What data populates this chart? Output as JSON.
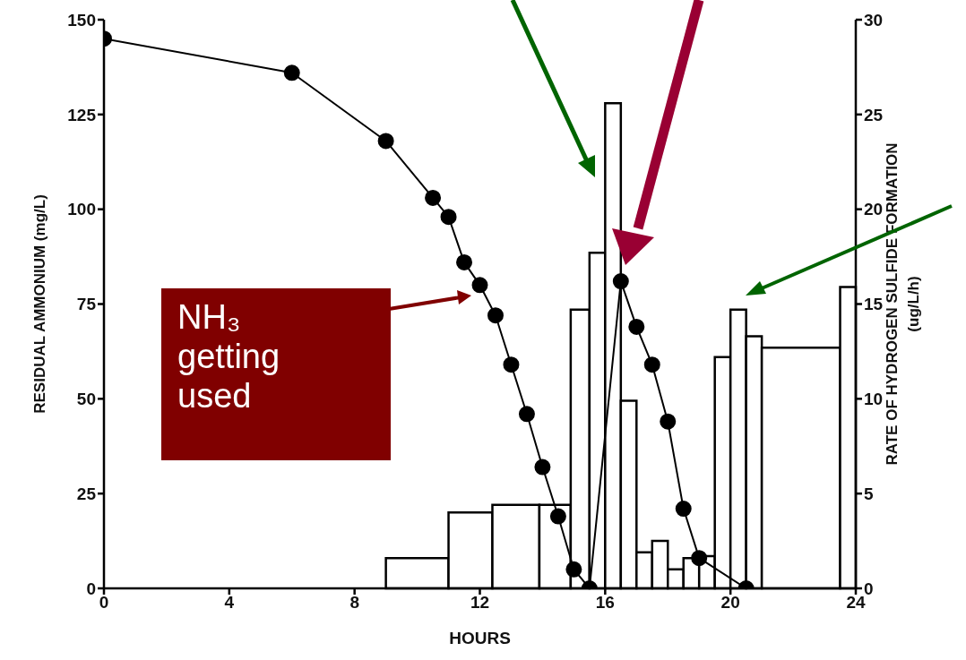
{
  "chart_data": {
    "type": "line",
    "xlabel": "HOURS",
    "ylabel": "RESIDUAL AMMONIUM (mg/L)",
    "y2label": "RATE OF HYDROGEN SULFIDE FORMATION (ug/L/h)",
    "xlim": [
      0,
      24
    ],
    "xticks": [
      0,
      4,
      8,
      12,
      16,
      20,
      24
    ],
    "ylim": [
      0,
      150
    ],
    "yticks": [
      0,
      25,
      50,
      75,
      100,
      125,
      150
    ],
    "y2lim": [
      0,
      30
    ],
    "y2ticks": [
      0,
      5,
      10,
      15,
      20,
      25,
      30
    ],
    "marker": "circle",
    "series": [
      {
        "type": "histogram",
        "axis": "y2",
        "color": "#ffffff",
        "bins": [
          9,
          11,
          12.4,
          13.9,
          14.9,
          15.5,
          16,
          16.5,
          17,
          17.5,
          18,
          18.5,
          19,
          19.5,
          20,
          20.5,
          21,
          23.5,
          24
        ],
        "values": [
          1.6,
          4,
          4.4,
          4.4,
          14.7,
          17.7,
          25.6,
          9.9,
          1.9,
          2.5,
          1,
          1.6,
          1.7,
          12.2,
          14.7,
          13.3,
          12.7,
          15.9
        ]
      },
      {
        "color": "#000000",
        "x": [
          0,
          6,
          9,
          10.5,
          11,
          11.5,
          12,
          12.5,
          13,
          13.5,
          14,
          14.5,
          15,
          15.5,
          16.5,
          17,
          17.5,
          18,
          18.5,
          19,
          20.5
        ],
        "values": [
          145,
          136,
          118,
          103,
          98,
          86,
          80,
          72,
          59,
          46,
          32,
          19,
          5,
          0,
          81,
          69,
          59,
          44,
          21,
          8,
          0
        ]
      }
    ],
    "annotations": [
      "NH₃ getting used"
    ]
  }
}
